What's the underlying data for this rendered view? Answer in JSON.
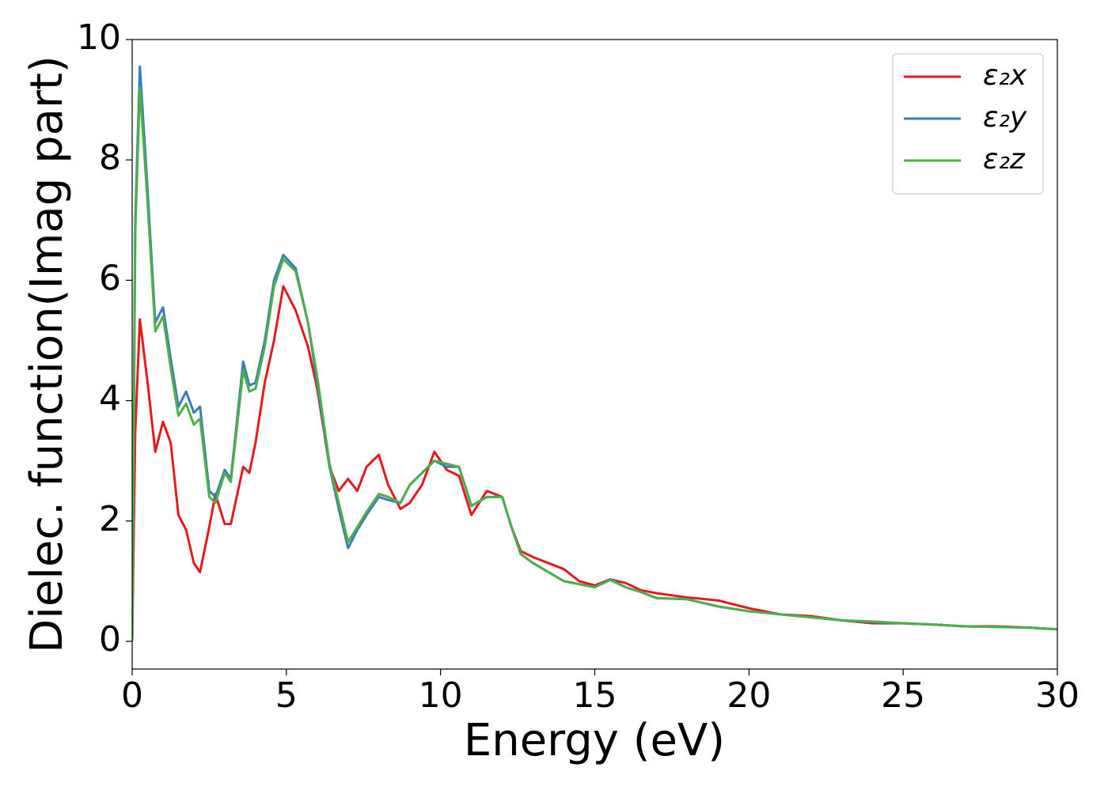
{
  "chart_data": {
    "type": "line",
    "xlabel": "Energy (eV)",
    "ylabel": "Dielec. function(Imag part)",
    "x": [
      0,
      0.1,
      0.25,
      0.5,
      0.75,
      1.0,
      1.25,
      1.5,
      1.75,
      2.0,
      2.2,
      2.5,
      2.7,
      3.0,
      3.2,
      3.6,
      3.8,
      4.0,
      4.3,
      4.6,
      4.9,
      5.3,
      5.7,
      6.0,
      6.4,
      6.7,
      7.0,
      7.3,
      7.6,
      8.0,
      8.3,
      8.7,
      9.0,
      9.4,
      9.8,
      10.2,
      10.6,
      11.0,
      11.5,
      12.0,
      12.3,
      12.6,
      13.0,
      13.5,
      14.0,
      14.5,
      15.0,
      15.5,
      16.0,
      16.5,
      17.0,
      18.0,
      19.0,
      20.0,
      21.0,
      22.0,
      23.0,
      24.0,
      25.0,
      26.0,
      27.0,
      28.0,
      29.0,
      30.0
    ],
    "series": [
      {
        "name": "ε₂x",
        "color": "#e41a1c",
        "values": [
          0,
          3.5,
          5.35,
          4.3,
          3.15,
          3.65,
          3.3,
          2.1,
          1.85,
          1.3,
          1.15,
          1.9,
          2.45,
          1.95,
          1.95,
          2.9,
          2.8,
          3.3,
          4.3,
          5.0,
          5.9,
          5.5,
          4.9,
          4.2,
          2.9,
          2.5,
          2.7,
          2.5,
          2.9,
          3.1,
          2.6,
          2.2,
          2.3,
          2.6,
          3.15,
          2.85,
          2.75,
          2.1,
          2.5,
          2.4,
          1.9,
          1.5,
          1.4,
          1.3,
          1.2,
          1.0,
          0.93,
          1.03,
          0.97,
          0.85,
          0.8,
          0.73,
          0.68,
          0.55,
          0.45,
          0.42,
          0.35,
          0.3,
          0.3,
          0.28,
          0.25,
          0.25,
          0.23,
          0.2
        ]
      },
      {
        "name": "ε₂y",
        "color": "#377eb8",
        "values": [
          0,
          7.0,
          9.55,
          7.5,
          5.3,
          5.55,
          4.7,
          3.9,
          4.15,
          3.8,
          3.9,
          2.5,
          2.4,
          2.85,
          2.7,
          4.65,
          4.25,
          4.3,
          5.0,
          6.0,
          6.42,
          6.2,
          5.3,
          4.3,
          2.9,
          2.2,
          1.55,
          1.85,
          2.1,
          2.4,
          2.35,
          2.3,
          2.6,
          2.8,
          3.0,
          2.9,
          2.9,
          2.25,
          2.4,
          2.4,
          1.9,
          1.45,
          1.3,
          1.15,
          1.0,
          0.95,
          0.9,
          1.03,
          0.9,
          0.82,
          0.72,
          0.7,
          0.58,
          0.5,
          0.45,
          0.4,
          0.35,
          0.32,
          0.3,
          0.28,
          0.25,
          0.24,
          0.23,
          0.2
        ]
      },
      {
        "name": "ε₂z",
        "color": "#4daf4a",
        "values": [
          0,
          6.8,
          9.2,
          7.3,
          5.15,
          5.4,
          4.55,
          3.75,
          3.95,
          3.6,
          3.7,
          2.4,
          2.3,
          2.8,
          2.65,
          4.5,
          4.15,
          4.2,
          4.9,
          5.9,
          6.35,
          6.15,
          5.3,
          4.4,
          2.95,
          2.3,
          1.65,
          1.9,
          2.15,
          2.45,
          2.4,
          2.3,
          2.6,
          2.8,
          3.0,
          2.95,
          2.9,
          2.25,
          2.4,
          2.4,
          1.9,
          1.45,
          1.3,
          1.15,
          1.0,
          0.95,
          0.9,
          1.02,
          0.9,
          0.82,
          0.72,
          0.7,
          0.58,
          0.5,
          0.45,
          0.4,
          0.35,
          0.33,
          0.3,
          0.28,
          0.25,
          0.24,
          0.23,
          0.2
        ]
      }
    ],
    "xlim": [
      0,
      30
    ],
    "xticks": [
      0,
      5,
      10,
      15,
      20,
      25,
      30
    ],
    "ylim": [
      -0.46,
      10.0
    ],
    "yticks": [
      0,
      2,
      4,
      6,
      8,
      10
    ],
    "legend": "upper right",
    "grid": false
  }
}
